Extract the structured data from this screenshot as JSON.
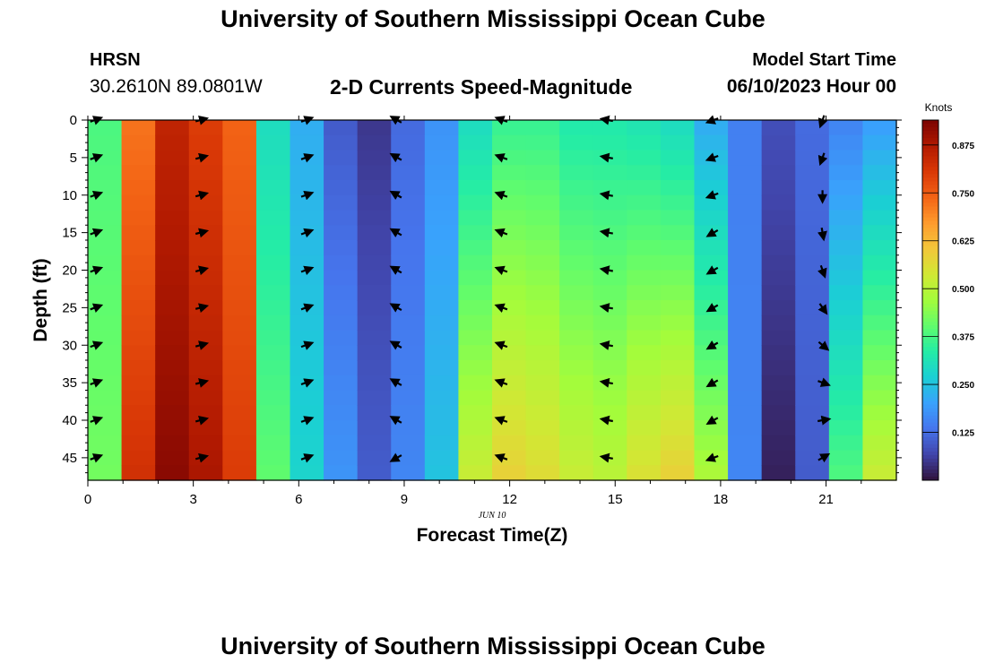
{
  "header": {
    "title": "University of Southern Mississippi Ocean Cube",
    "station": "HRSN",
    "coordinates": "30.2610N  89.0801W",
    "subtitle": "2-D Currents Speed-Magnitude",
    "start_label": "Model Start Time",
    "start_value": "06/10/2023 Hour 00"
  },
  "footer": {
    "title": "University of Southern Mississippi Ocean Cube"
  },
  "chart_data": {
    "type": "heatmap",
    "title": "2-D Currents Speed-Magnitude",
    "xlabel": "Forecast Time(Z)",
    "ylabel": "Depth (ft)",
    "date_label": "JUN 10",
    "colorbar_label": "Knots",
    "xlim": [
      0,
      23
    ],
    "ylim": [
      0,
      48
    ],
    "x_ticks": [
      0,
      3,
      6,
      9,
      12,
      15,
      18,
      21
    ],
    "y_ticks": [
      0,
      5,
      10,
      15,
      20,
      25,
      30,
      35,
      40,
      45
    ],
    "colorbar_range": [
      0,
      0.94
    ],
    "colorbar_ticks": [
      0.125,
      0.25,
      0.375,
      0.5,
      0.625,
      0.75,
      0.875
    ],
    "colorbar_tick_labels": [
      "0.125",
      "0.250",
      "0.375",
      "0.500",
      "0.625",
      "0.750",
      "0.875"
    ],
    "colormap": [
      "#30123b",
      "#4145ab",
      "#4675ed",
      "#39a2fc",
      "#1bcfd4",
      "#24eca6",
      "#61fc6c",
      "#a4fc3b",
      "#d1e834",
      "#f3c63a",
      "#fe9b2d",
      "#f36315",
      "#d93806",
      "#b11901",
      "#7a0402"
    ],
    "hours": [
      0,
      1,
      2,
      3,
      4,
      5,
      6,
      7,
      8,
      9,
      10,
      11,
      12,
      13,
      14,
      15,
      16,
      17,
      18,
      19,
      20,
      21,
      22,
      23
    ],
    "speed_knots_top_bottom": [
      [
        0.38,
        0.42
      ],
      [
        0.72,
        0.82
      ],
      [
        0.85,
        0.92
      ],
      [
        0.8,
        0.88
      ],
      [
        0.74,
        0.8
      ],
      [
        0.3,
        0.4
      ],
      [
        0.22,
        0.28
      ],
      [
        0.1,
        0.18
      ],
      [
        0.05,
        0.1
      ],
      [
        0.12,
        0.16
      ],
      [
        0.18,
        0.25
      ],
      [
        0.3,
        0.52
      ],
      [
        0.36,
        0.58
      ],
      [
        0.36,
        0.56
      ],
      [
        0.33,
        0.52
      ],
      [
        0.33,
        0.5
      ],
      [
        0.32,
        0.55
      ],
      [
        0.3,
        0.58
      ],
      [
        0.22,
        0.48
      ],
      [
        0.15,
        0.16
      ],
      [
        0.08,
        0.02
      ],
      [
        0.12,
        0.1
      ],
      [
        0.16,
        0.38
      ],
      [
        0.2,
        0.52
      ]
    ],
    "vector_times": [
      0.2,
      3.2,
      6.2,
      8.8,
      11.8,
      14.8,
      17.8,
      20.9
    ],
    "vector_depths": [
      0,
      5,
      10,
      15,
      20,
      25,
      30,
      35,
      40,
      45
    ],
    "vector_direction_deg": [
      [
        70,
        70,
        70,
        70,
        70,
        70,
        70,
        70,
        70,
        70
      ],
      [
        75,
        75,
        75,
        75,
        75,
        75,
        75,
        75,
        75,
        75
      ],
      [
        70,
        70,
        70,
        70,
        70,
        70,
        70,
        70,
        70,
        70
      ],
      [
        300,
        300,
        300,
        300,
        300,
        300,
        300,
        300,
        300,
        240
      ],
      [
        290,
        290,
        290,
        290,
        290,
        290,
        290,
        290,
        290,
        290
      ],
      [
        280,
        280,
        280,
        280,
        280,
        280,
        280,
        280,
        280,
        280
      ],
      [
        250,
        250,
        250,
        240,
        240,
        240,
        240,
        240,
        240,
        250
      ],
      [
        200,
        200,
        180,
        170,
        160,
        145,
        130,
        110,
        80,
        60
      ]
    ]
  }
}
